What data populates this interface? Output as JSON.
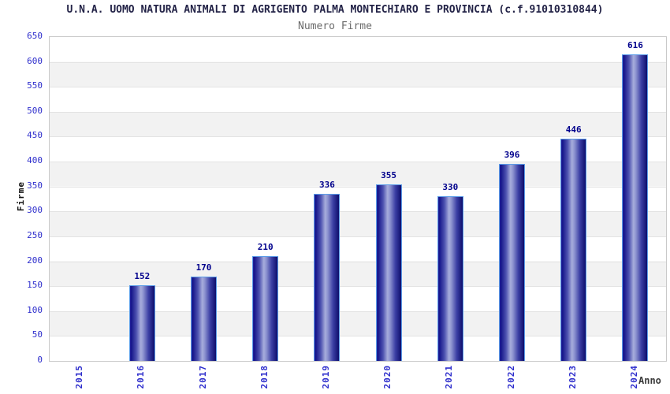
{
  "chart_data": {
    "type": "bar",
    "title": "U.N.A. UOMO NATURA ANIMALI DI AGRIGENTO PALMA MONTECHIARO E PROVINCIA (c.f.91010310844)",
    "subtitle": "Numero Firme",
    "xlabel": "Anno",
    "ylabel": "Firme",
    "categories": [
      "2015",
      "2016",
      "2017",
      "2018",
      "2019",
      "2020",
      "2021",
      "2022",
      "2023",
      "2024"
    ],
    "values": [
      0,
      152,
      170,
      210,
      336,
      355,
      330,
      396,
      446,
      616
    ],
    "ylim": [
      0,
      650
    ],
    "ytick_step": 50,
    "grid": "horizontal gridlines every 50 with alternating white/gray bands",
    "legend": "none",
    "bar_labels_shown": true
  },
  "colors": {
    "tick_label_blue": "#2d2dcc",
    "value_label_navy": "#00008c",
    "bar_gradient_dark": "#15158a",
    "bar_gradient_light": "#a7addc",
    "bar_border": "#5b9ce8",
    "band_gray": "#f2f2f2",
    "gridline": "#e3e3e3",
    "plot_border": "#c9c9c9",
    "title_color": "#232347",
    "subtitle_color": "#6b6b6b"
  }
}
